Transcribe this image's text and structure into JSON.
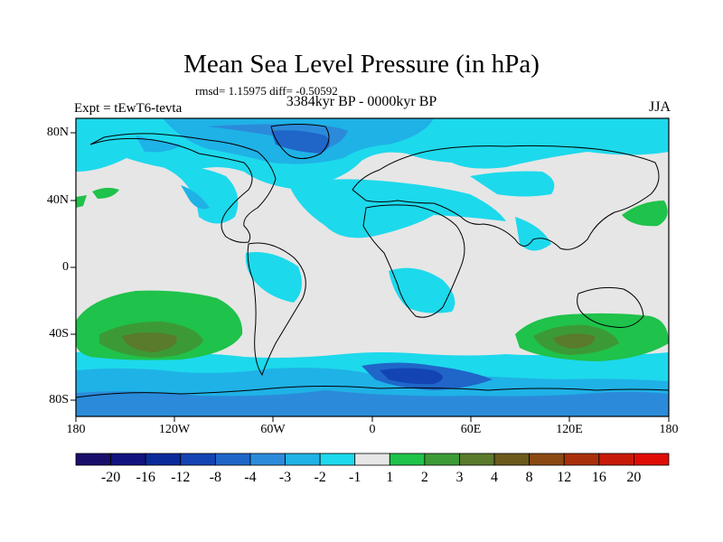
{
  "title": "Mean Sea Level Pressure (in hPa)",
  "stats": "rmsd= 1.15975 diff= -0.50592",
  "experiment": "Expt = tEwT6-tevta",
  "period": "3384kyr BP - 0000kyr BP",
  "season": "JJA",
  "lat_labels": [
    "80N",
    "40N",
    "0",
    "40S",
    "80S"
  ],
  "lon_labels": [
    "180",
    "120W",
    "60W",
    "0",
    "60E",
    "120E",
    "180"
  ],
  "colorbar": {
    "labels": [
      "-20",
      "-16",
      "-12",
      "-8",
      "-4",
      "-3",
      "-2",
      "-1",
      "1",
      "2",
      "3",
      "4",
      "8",
      "12",
      "16",
      "20"
    ],
    "colors": [
      "#1a0f6b",
      "#12137f",
      "#0a2a9a",
      "#1444b4",
      "#1f66c8",
      "#2b8bda",
      "#1fb2e6",
      "#1dd9ec",
      "#e6e6e6",
      "#1fc24a",
      "#3c9a36",
      "#5a7a2c",
      "#6a5a1c",
      "#8a4a12",
      "#a8300a",
      "#c81a08",
      "#e00c06"
    ]
  }
}
